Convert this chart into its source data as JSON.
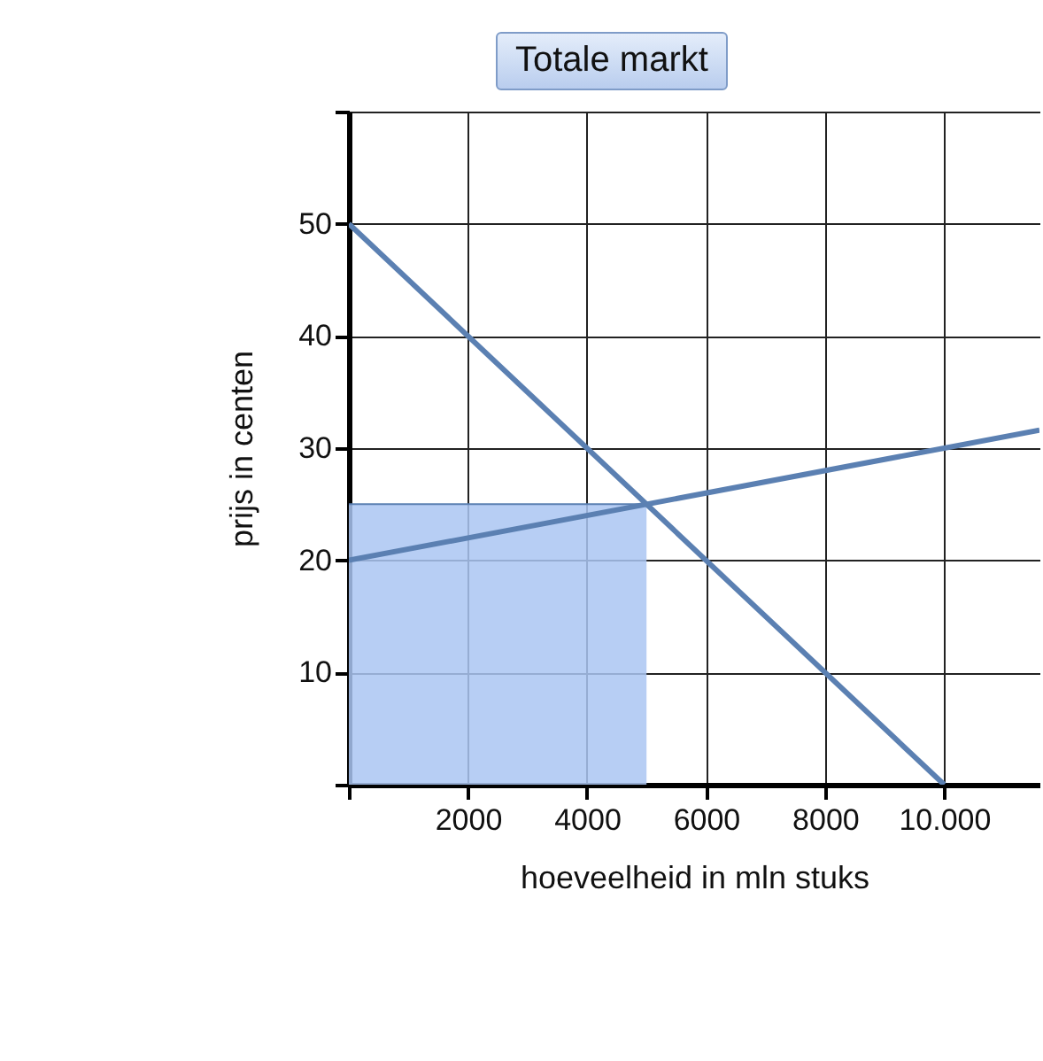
{
  "chart_data": {
    "type": "line",
    "title": "Totale markt",
    "xlabel": "hoeveelheid in mln stuks",
    "ylabel": "prijs in centen",
    "xlim": [
      0,
      11600
    ],
    "ylim": [
      0,
      60
    ],
    "xticks": [
      {
        "value": 0,
        "label": null
      },
      2000,
      4000,
      6000,
      8000,
      {
        "value": 10000,
        "label": "10.000"
      }
    ],
    "yticks": [
      {
        "value": 0,
        "label": null
      },
      10,
      20,
      30,
      40,
      50,
      {
        "value": 60,
        "label": null
      }
    ],
    "grid": true,
    "series": [
      {
        "type": "area",
        "color": "#aac6f2",
        "x": [
          0,
          5000
        ],
        "values": [
          25,
          25
        ]
      },
      {
        "color": "#5b80b2",
        "x": [
          0,
          10000
        ],
        "values": [
          50,
          0
        ]
      },
      {
        "color": "#5b80b2",
        "x": [
          0,
          11600
        ],
        "values": [
          20,
          31.6
        ]
      }
    ]
  }
}
